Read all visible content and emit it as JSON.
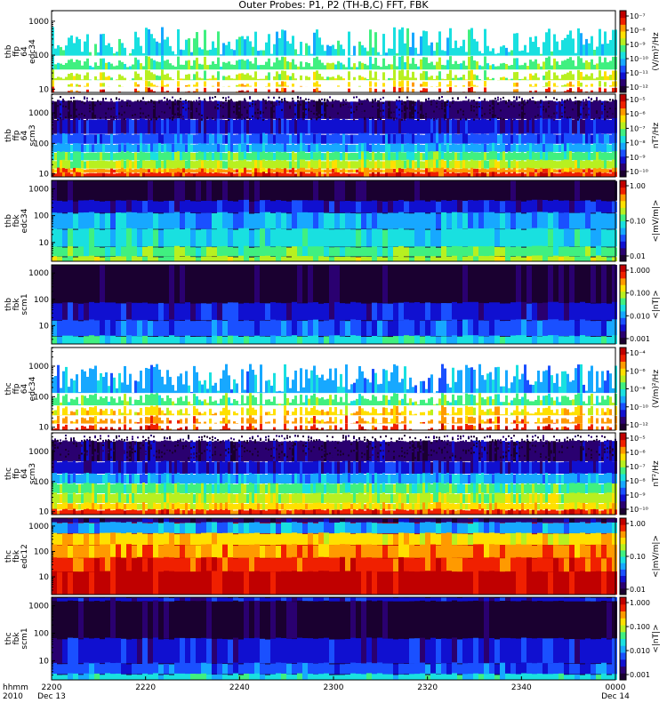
{
  "chart_data": {
    "type": "heatmap",
    "title": "Outer Probes: P1, P2 (TH-B,C) FFT, FBK",
    "x_axis": {
      "ticks": [
        "2200",
        "2220",
        "2240",
        "2300",
        "2320",
        "2340",
        "0000"
      ],
      "tick_dates": [
        "Dec 13",
        "",
        "",
        "",
        "",
        "",
        "Dec 14"
      ],
      "row_label_time": "hhmm",
      "row_label_date": "2010"
    },
    "panels": [
      {
        "ylabel": [
          "thb",
          "ffp",
          "64",
          "edc34"
        ],
        "yticks": [
          "1000",
          "100",
          "10"
        ],
        "ylim": [
          8,
          2048
        ],
        "yscale": "log",
        "colorbar_label": "(V/m)²/Hz",
        "colorbar_ticks": [
          "10⁻⁷",
          "10⁻⁸",
          "10⁻⁹",
          "10⁻¹⁰",
          "10⁻¹¹",
          "10⁻¹²"
        ],
        "colorbar_log": true
      },
      {
        "ylabel": [
          "thb",
          "ffp",
          "64",
          "scm3"
        ],
        "yticks": [
          "1000",
          "100",
          "10"
        ],
        "ylim": [
          8,
          4096
        ],
        "yscale": "log",
        "colorbar_label": "nT²/Hz",
        "colorbar_ticks": [
          "10⁻⁵",
          "10⁻⁶",
          "10⁻⁷",
          "10⁻⁸",
          "10⁻⁹",
          "10⁻¹⁰"
        ],
        "colorbar_log": true
      },
      {
        "ylabel": [
          "thb",
          "fbk",
          "edc34"
        ],
        "yticks": [
          "1000",
          "100",
          "10"
        ],
        "ylim": [
          2,
          2048
        ],
        "yscale": "log",
        "colorbar_label": "<|mV/m|>",
        "colorbar_ticks": [
          "1.00",
          "0.10",
          "0.01"
        ],
        "colorbar_log": true
      },
      {
        "ylabel": [
          "thb",
          "fbk",
          "scm1"
        ],
        "yticks": [
          "1000",
          "100",
          "10"
        ],
        "ylim": [
          2,
          2048
        ],
        "yscale": "log",
        "colorbar_label": "<|nT|>",
        "colorbar_ticks": [
          "1.000",
          "0.100",
          "0.010",
          "0.001"
        ],
        "colorbar_log": true
      },
      {
        "ylabel": [
          "thc",
          "ffp",
          "64",
          "edc34"
        ],
        "yticks": [
          "1000",
          "100",
          "10"
        ],
        "ylim": [
          8,
          4096
        ],
        "yscale": "log",
        "colorbar_label": "(V/m)²/Hz",
        "colorbar_ticks": [
          "10⁻⁴",
          "10⁻⁶",
          "10⁻⁸",
          "10⁻¹⁰",
          "10⁻¹²"
        ],
        "colorbar_log": true
      },
      {
        "ylabel": [
          "thc",
          "ffp",
          "64",
          "scm3"
        ],
        "yticks": [
          "1000",
          "100",
          "10"
        ],
        "ylim": [
          8,
          4096
        ],
        "yscale": "log",
        "colorbar_label": "nT²/Hz",
        "colorbar_ticks": [
          "10⁻⁵",
          "10⁻⁶",
          "10⁻⁷",
          "10⁻⁸",
          "10⁻⁹",
          "10⁻¹⁰"
        ],
        "colorbar_log": true
      },
      {
        "ylabel": [
          "thc",
          "fbk",
          "edc12"
        ],
        "yticks": [
          "1000",
          "100",
          "10"
        ],
        "ylim": [
          2,
          2048
        ],
        "yscale": "log",
        "colorbar_label": "<|mV/m|>",
        "colorbar_ticks": [
          "1.00",
          "0.10",
          "0.01"
        ],
        "colorbar_log": true
      },
      {
        "ylabel": [
          "thc",
          "fbk",
          "scm1"
        ],
        "yticks": [
          "1000",
          "100",
          "10"
        ],
        "ylim": [
          2,
          2048
        ],
        "yscale": "log",
        "colorbar_label": "<|nT|>",
        "colorbar_ticks": [
          "1.000",
          "0.100",
          "0.010",
          "0.001"
        ],
        "colorbar_log": true
      }
    ],
    "colormap": [
      "#1a0030",
      "#2a0070",
      "#1010d0",
      "#1a50ff",
      "#17a8ff",
      "#19e0e0",
      "#40f080",
      "#b8f020",
      "#ffe000",
      "#ff9a00",
      "#f02000",
      "#c00000"
    ]
  }
}
